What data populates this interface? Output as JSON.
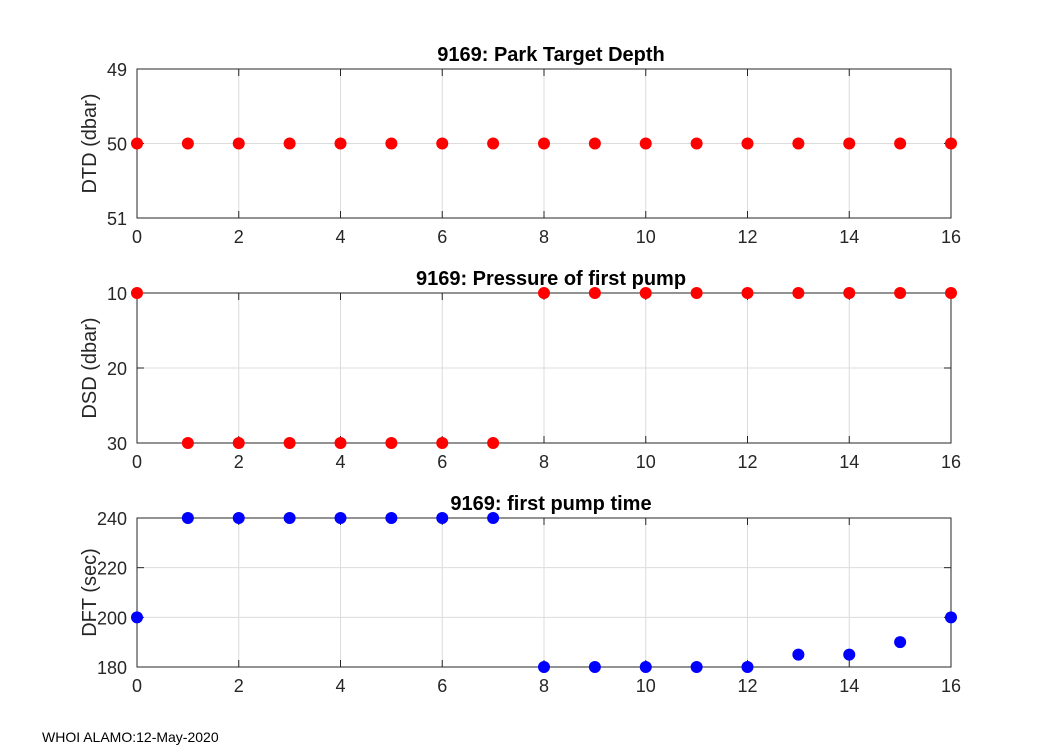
{
  "footer": "WHOI ALAMO:12-May-2020",
  "chart_data": [
    {
      "type": "scatter",
      "title": "9169: Park Target Depth",
      "ylabel": "DTD (dbar)",
      "xlabel": "",
      "xlim": [
        0,
        16
      ],
      "ylim": [
        49,
        51
      ],
      "y_reversed": true,
      "xticks": [
        0,
        2,
        4,
        6,
        8,
        10,
        12,
        14,
        16
      ],
      "yticks": [
        49,
        50,
        51
      ],
      "grid": true,
      "marker_color": "#ff0000",
      "x": [
        0,
        1,
        2,
        3,
        4,
        5,
        6,
        7,
        8,
        9,
        10,
        11,
        12,
        13,
        14,
        15,
        16
      ],
      "y": [
        50,
        50,
        50,
        50,
        50,
        50,
        50,
        50,
        50,
        50,
        50,
        50,
        50,
        50,
        50,
        50,
        50
      ]
    },
    {
      "type": "scatter",
      "title": "9169: Pressure of first pump",
      "ylabel": "DSD (dbar)",
      "xlabel": "",
      "xlim": [
        0,
        16
      ],
      "ylim": [
        10,
        30
      ],
      "y_reversed": true,
      "xticks": [
        0,
        2,
        4,
        6,
        8,
        10,
        12,
        14,
        16
      ],
      "yticks": [
        10,
        20,
        30
      ],
      "grid": true,
      "marker_color": "#ff0000",
      "x": [
        0,
        1,
        2,
        3,
        4,
        5,
        6,
        7,
        8,
        9,
        10,
        11,
        12,
        13,
        14,
        15,
        16
      ],
      "y": [
        10,
        30,
        30,
        30,
        30,
        30,
        30,
        30,
        10,
        10,
        10,
        10,
        10,
        10,
        10,
        10,
        10
      ]
    },
    {
      "type": "scatter",
      "title": "9169: first pump time",
      "ylabel": "DFT (sec)",
      "xlabel": "",
      "xlim": [
        0,
        16
      ],
      "ylim": [
        180,
        240
      ],
      "y_reversed": false,
      "xticks": [
        0,
        2,
        4,
        6,
        8,
        10,
        12,
        14,
        16
      ],
      "yticks": [
        180,
        200,
        220,
        240
      ],
      "grid": true,
      "marker_color": "#0000ff",
      "x": [
        0,
        1,
        2,
        3,
        4,
        5,
        6,
        7,
        8,
        9,
        10,
        11,
        12,
        13,
        14,
        15,
        16
      ],
      "y": [
        200,
        240,
        240,
        240,
        240,
        240,
        240,
        240,
        180,
        180,
        180,
        180,
        180,
        185,
        185,
        190,
        200
      ]
    }
  ]
}
